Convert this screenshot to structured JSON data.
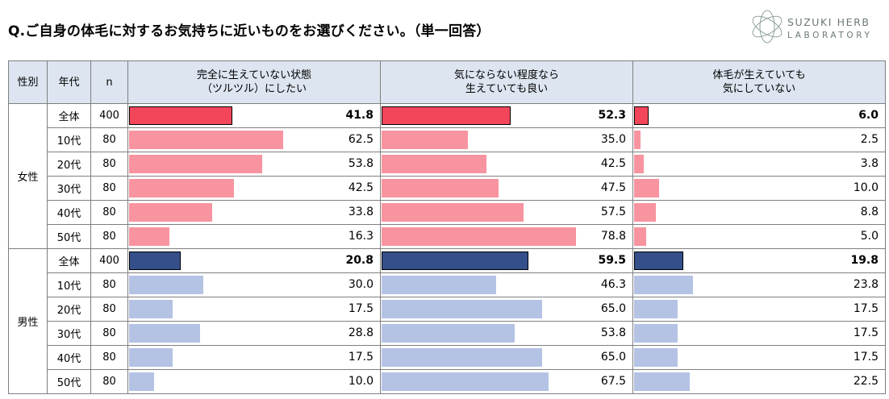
{
  "title": "Q.ご自身の体毛に対するお気持ちに近いものをお選びください。（単一回答）",
  "logo": {
    "line1": "SUZUKI HERB",
    "line2": "LABORATORY"
  },
  "header": {
    "gender": "性別",
    "age": "年代",
    "n": "n",
    "columns": [
      {
        "line1": "完全に生えていない状態",
        "line2": "（ツルツル）にしたい"
      },
      {
        "line1": "気にならない程度なら",
        "line2": "生えていても良い"
      },
      {
        "line1": "体毛が生えていても",
        "line2": "気にしていない"
      }
    ]
  },
  "colors": {
    "female_total": "#f4465a",
    "female_age": "#f7949f",
    "male_total": "#344f8a",
    "male_age": "#b4c3e4"
  },
  "chart_data": {
    "type": "bar",
    "orientation": "horizontal",
    "title": "Q.ご自身の体毛に対するお気持ちに近いものをお選びください。（単一回答）",
    "xlim": [
      0,
      100
    ],
    "series": [
      {
        "name": "完全に生えていない状態（ツルツル）にしたい"
      },
      {
        "name": "気にならない程度なら生えていても良い"
      },
      {
        "name": "体毛が生えていても気にしていない"
      }
    ],
    "groups": [
      {
        "gender": "女性",
        "rows": [
          {
            "age": "全体",
            "n": "400",
            "total": true,
            "values": [
              41.8,
              52.3,
              6.0
            ],
            "labels": [
              "41.8",
              "52.3",
              "6.0"
            ]
          },
          {
            "age": "10代",
            "n": "80",
            "total": false,
            "values": [
              62.5,
              35.0,
              2.5
            ],
            "labels": [
              "62.5",
              "35.0",
              "2.5"
            ]
          },
          {
            "age": "20代",
            "n": "80",
            "total": false,
            "values": [
              53.8,
              42.5,
              3.8
            ],
            "labels": [
              "53.8",
              "42.5",
              "3.8"
            ]
          },
          {
            "age": "30代",
            "n": "80",
            "total": false,
            "values": [
              42.5,
              47.5,
              10.0
            ],
            "labels": [
              "42.5",
              "47.5",
              "10.0"
            ]
          },
          {
            "age": "40代",
            "n": "80",
            "total": false,
            "values": [
              33.8,
              57.5,
              8.8
            ],
            "labels": [
              "33.8",
              "57.5",
              "8.8"
            ]
          },
          {
            "age": "50代",
            "n": "80",
            "total": false,
            "values": [
              16.3,
              78.8,
              5.0
            ],
            "labels": [
              "16.3",
              "78.8",
              "5.0"
            ]
          }
        ]
      },
      {
        "gender": "男性",
        "rows": [
          {
            "age": "全体",
            "n": "400",
            "total": true,
            "values": [
              20.8,
              59.5,
              19.8
            ],
            "labels": [
              "20.8",
              "59.5",
              "19.8"
            ]
          },
          {
            "age": "10代",
            "n": "80",
            "total": false,
            "values": [
              30.0,
              46.3,
              23.8
            ],
            "labels": [
              "30.0",
              "46.3",
              "23.8"
            ]
          },
          {
            "age": "20代",
            "n": "80",
            "total": false,
            "values": [
              17.5,
              65.0,
              17.5
            ],
            "labels": [
              "17.5",
              "65.0",
              "17.5"
            ]
          },
          {
            "age": "30代",
            "n": "80",
            "total": false,
            "values": [
              28.8,
              53.8,
              17.5
            ],
            "labels": [
              "28.8",
              "53.8",
              "17.5"
            ]
          },
          {
            "age": "40代",
            "n": "80",
            "total": false,
            "values": [
              17.5,
              65.0,
              17.5
            ],
            "labels": [
              "17.5",
              "65.0",
              "17.5"
            ]
          },
          {
            "age": "50代",
            "n": "80",
            "total": false,
            "values": [
              10.0,
              67.5,
              22.5
            ],
            "labels": [
              "10.0",
              "67.5",
              "22.5"
            ]
          }
        ]
      }
    ]
  }
}
